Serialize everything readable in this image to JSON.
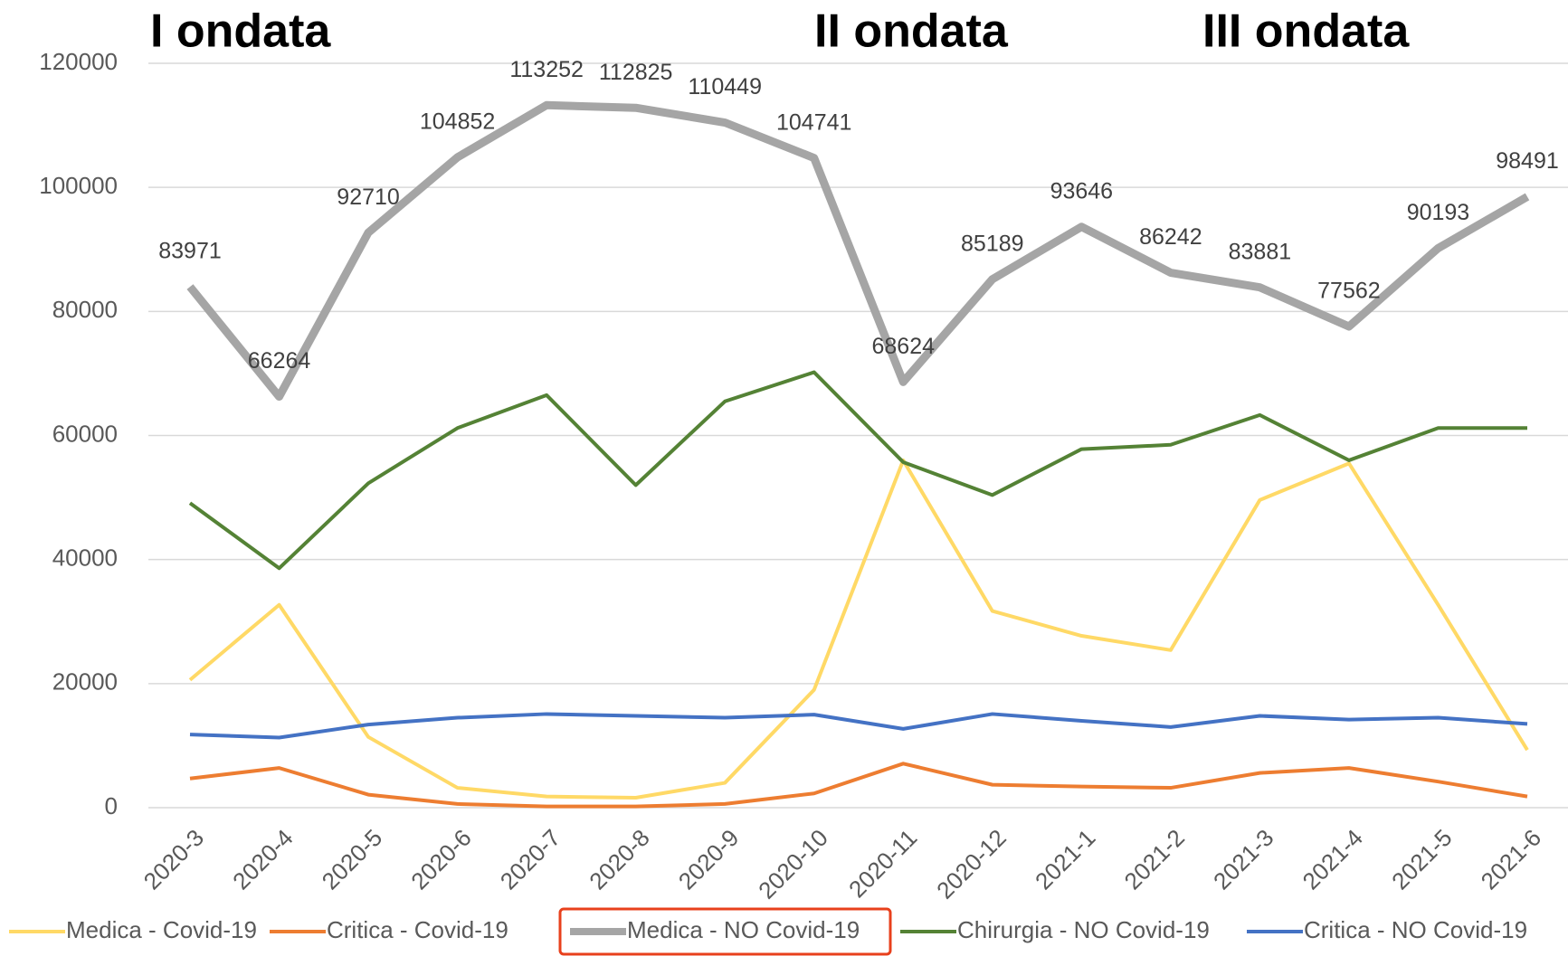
{
  "chart_data": {
    "type": "line",
    "annotations": [
      "I ondata",
      "II ondata",
      "III ondata"
    ],
    "categories": [
      "2020-3",
      "2020-4",
      "2020-5",
      "2020-6",
      "2020-7",
      "2020-8",
      "2020-9",
      "2020-10",
      "2020-11",
      "2020-12",
      "2021-1",
      "2021-2",
      "2021-3",
      "2021-4",
      "2021-5",
      "2021-6"
    ],
    "series": [
      {
        "name": "Medica - Covid-19",
        "color": "#ffd966",
        "values": [
          20600,
          32700,
          11400,
          3200,
          1800,
          1600,
          4000,
          19000,
          56000,
          31700,
          27700,
          25400,
          49600,
          55500,
          32700,
          9300
        ]
      },
      {
        "name": "Critica - Covid-19",
        "color": "#ed7d31",
        "values": [
          4700,
          6400,
          2100,
          600,
          200,
          200,
          600,
          2300,
          7100,
          3700,
          3400,
          3200,
          5600,
          6400,
          4200,
          1800
        ]
      },
      {
        "name": "Medica - NO Covid-19",
        "color": "#a5a5a5",
        "show_labels": true,
        "values": [
          83971,
          66264,
          92710,
          104852,
          113252,
          112825,
          110449,
          104741,
          68624,
          85189,
          93646,
          86242,
          83881,
          77562,
          90193,
          98491
        ]
      },
      {
        "name": "Chirurgia - NO Covid-19",
        "color": "#548235",
        "values": [
          49100,
          38600,
          52300,
          61200,
          66500,
          52000,
          65500,
          70200,
          55700,
          50400,
          57800,
          58500,
          63300,
          56000,
          61200,
          61200
        ]
      },
      {
        "name": "Critica - NO Covid-19",
        "color": "#4472c4",
        "values": [
          11800,
          11300,
          13400,
          14500,
          15100,
          14800,
          14500,
          15000,
          12700,
          15100,
          14000,
          13000,
          14800,
          14200,
          14500,
          13500
        ]
      }
    ],
    "ylim": [
      0,
      120000
    ],
    "yticks": [
      0,
      20000,
      40000,
      60000,
      80000,
      100000,
      120000
    ],
    "grid": true,
    "legend": "bottom"
  }
}
